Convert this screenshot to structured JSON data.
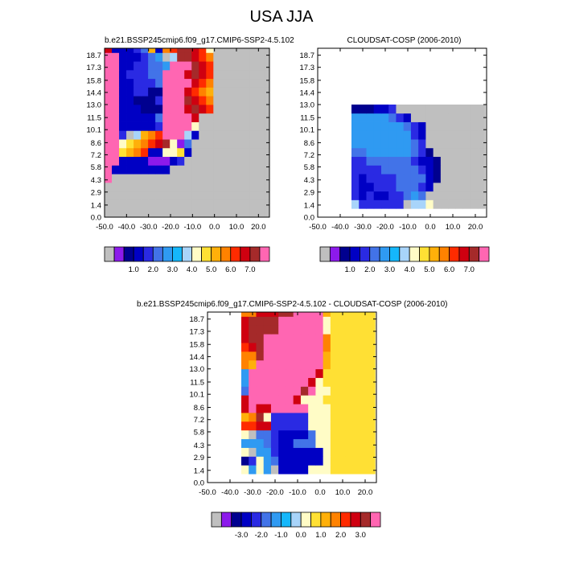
{
  "page_title": "USA JJA",
  "colors": {
    "seq": [
      "#bfbfbf",
      "#8c1aeb",
      "#00008f",
      "#0000c4",
      "#2a2ae3",
      "#4273e8",
      "#2f9af2",
      "#15b7fb",
      "#a8d4fa",
      "#fffcc6",
      "#ffe034",
      "#ffb00a",
      "#ff8200",
      "#ff2b00",
      "#cf0010",
      "#a52a2a",
      "#ff66b2"
    ],
    "diff": [
      "#bfbfbf",
      "#8c1aeb",
      "#00008f",
      "#0000c4",
      "#2a2ae3",
      "#4273e8",
      "#2f9af2",
      "#15b7fb",
      "#a8d4fa",
      "#fffcc6",
      "#ffe034",
      "#ffb00a",
      "#ff8200",
      "#ff2b00",
      "#cf0010",
      "#a52a2a",
      "#ff66b2"
    ]
  },
  "chart_data": [
    {
      "type": "heatmap",
      "title": "b.e21.BSSP245cmip6.f09_g17.CMIP6-SSP2-4.5.102",
      "x_ticks": [
        "-50.0",
        "-40.0",
        "-30.0",
        "-20.0",
        "-10.0",
        "0.0",
        "10.0",
        "20.0"
      ],
      "y_ticks": [
        "0.0",
        "1.4",
        "2.9",
        "4.3",
        "5.8",
        "7.2",
        "8.6",
        "10.1",
        "11.5",
        "13.0",
        "14.4",
        "15.8",
        "17.3",
        "18.7"
      ],
      "xlim": [
        -50,
        25
      ],
      "ylim": [
        0,
        19.5
      ],
      "x_cells_start": -50,
      "x_cell_width": 3.3,
      "y_cells_start": 0,
      "y_cell_height": 1.0,
      "colorbar_labels": [
        "1.0",
        "2.0",
        "3.0",
        "4.0",
        "5.0",
        "6.0",
        "7.0"
      ],
      "grid": [
        "GGGGGGGGGGGGGGGGGGGGGGG",
        "GGGGGGGGGGGGGGGGGGGGGGG",
        "GGGGGGGGGGGGGGGGGGGGGGG",
        "GGGGGGGGGGGGGGGGGGGGGGG",
        "PGGGGGGGGGGGGGGGGGGGGGG",
        "PCCCCCCCCGGGGGGGGGGGGGG",
        "PPCCCCAAACDGGGGGGGGGGGG",
        "PPJKLMCCIIJCGGGGGGGGGGG",
        "PPIJKLMNOIAEGGGGGGGGGGG",
        "PPDGHKLMPPPHCGGGGGGGGGG",
        "PPCCCCCDPPPPIGGGGGGGGGG",
        "PPCCCCCEPPPPNGGGGGGGGGG",
        "PPCCCBBBPPPNONMGGGGGGGG",
        "PPCCBBBDPPPONMLGGGGGGGG",
        "PPCCDDBBPPPNMLKGGGGGGGG",
        "PPCCDDDEPPPPNMLGGGGGGGG",
        "PPCDDDEEPPPNONMGGGGGGGG",
        "PPCCDDEEFPPPONMGGGGGGGG",
        "PPCCCDEFGHOONMLGGGGGGGG",
        "NCCCDEKCLMOONMIGGGGGGGG"
      ]
    },
    {
      "type": "heatmap",
      "title": "CLOUDSAT-COSP (2006-2010)",
      "x_ticks": [
        "-50.0",
        "-40.0",
        "-30.0",
        "-20.0",
        "-10.0",
        "0.0",
        "10.0",
        "20.0"
      ],
      "y_ticks": [
        "0.0",
        "1.4",
        "2.9",
        "4.3",
        "5.8",
        "7.2",
        "8.6",
        "10.1",
        "11.5",
        "13.0",
        "14.4",
        "15.8",
        "17.3",
        "18.7"
      ],
      "xlim": [
        -50,
        25
      ],
      "ylim": [
        0,
        19.5
      ],
      "x_cells_start": -35,
      "x_cell_width": 3.3,
      "y_cells_start": 1.0,
      "y_cell_height": 1.0,
      "colorbar_labels": [
        "1.0",
        "2.0",
        "3.0",
        "4.0",
        "5.0",
        "6.0",
        "7.0"
      ],
      "grid": [
        "HDDDDDDGHHIGGGGGGG",
        "DCDCCDDEFEGGGGGGGG",
        "DCCDDDEEEDCGGGGGGG",
        "DCDDDDEEEECBGGGGGG",
        "DDDDEEEEEDCBGGGGGG",
        "DDEEEEEEDCCBGGGGGG",
        "EEFFFFFFEDBGGGGGGG",
        "FFFFFFFFEDGGGGGGGG",
        "FFFFFFFFDCGGGGGGGG",
        "FFFFFFFEDCGGGGGGGG",
        "FFFFFEDCGGGGGGGGGG",
        "BBBCCDGGGGGGGGGGGG"
      ]
    },
    {
      "type": "heatmap",
      "title": "b.e21.BSSP245cmip6.f09_g17.CMIP6-SSP2-4.5.102 - CLOUDSAT-COSP (2006-2010)",
      "x_ticks": [
        "-50.0",
        "-40.0",
        "-30.0",
        "-20.0",
        "-10.0",
        "0.0",
        "10.0",
        "20.0"
      ],
      "y_ticks": [
        "0.0",
        "1.4",
        "2.9",
        "4.3",
        "5.8",
        "7.2",
        "8.6",
        "10.1",
        "11.5",
        "13.0",
        "14.4",
        "15.8",
        "17.3",
        "18.7"
      ],
      "xlim": [
        -50,
        25
      ],
      "ylim": [
        0,
        19.5
      ],
      "x_cells_start": -35,
      "x_cell_width": 3.3,
      "y_cells_start": 1.0,
      "y_cell_height": 1.0,
      "colorbar_labels": [
        "-3.0",
        "-2.0",
        "-1.0",
        "0.0",
        "1.0",
        "2.0",
        "3.0"
      ],
      "grid": [
        "IFIFGCCCCIIIJJJJJJ",
        "BDIFECCCCCCIJJJJJJ",
        "IGFFDCCCCCCIJJJJJJ",
        "FFFEDCCEEEIIJJJJJJ",
        "IGEEDCCCCEIIJJJJJJ",
        "MMNNDDDDDIIIJJJJJJ",
        "KLOIDDDDDIIIJJJJJJ",
        "NPNNPPPPPIIIJJJJJJ",
        "NPPPPPPNIIIJJJJJJJ",
        "EPPPPPPPOPIIJJJJJJ",
        "FPPPPPPPPNIJJJJJJJ",
        "FPPPPPPPPPNJJJJJJJ",
        "LKPPPPPPPPPKJJJJJJ",
        "LLOPPPPPPPPKJJJJJJ",
        "MNOPPPPPPPPLJJJJJJ",
        "NOOPPPPPPPPLJJJJJJ",
        "NOOOOPPPPPPIJJJJJJ",
        "NOOOOPPPPPPIJJJJJJ",
        "LLNNNOOPPPPKJJJJJJ"
      ]
    }
  ]
}
